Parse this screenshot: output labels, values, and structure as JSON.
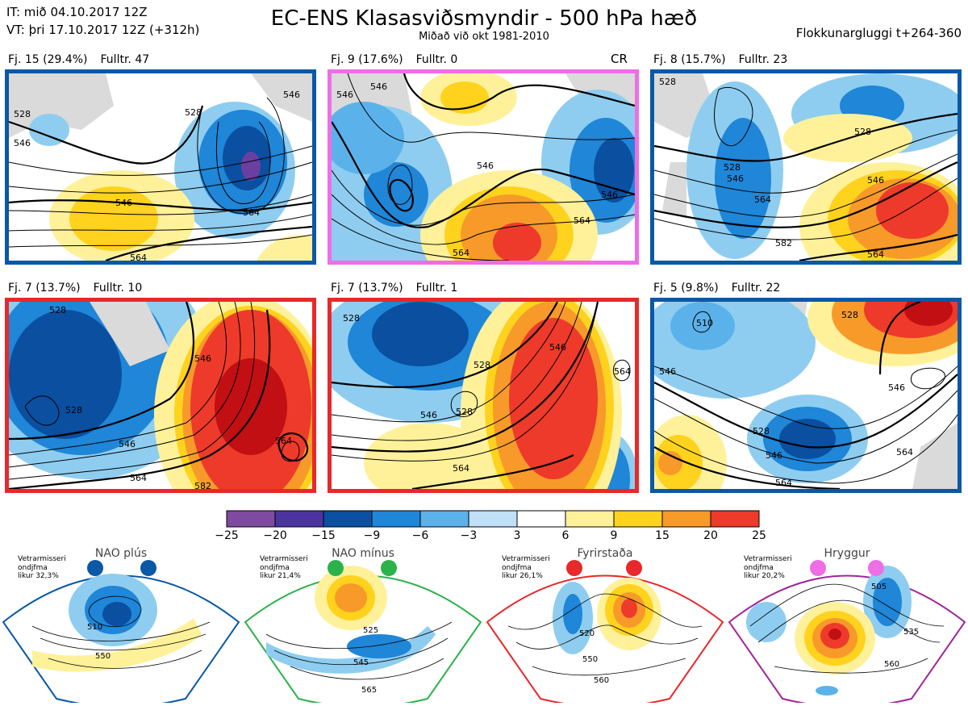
{
  "header": {
    "it_line": "IT: mið 04.10.2017 12Z",
    "vt_line": "VT: þri 17.10.2017 12Z  (+312h)",
    "title": "EC-ENS Klasasviðsmyndir - 500 hPa hæð",
    "subtitle": "Miðað við okt 1981-2010",
    "window": "Flokkunargluggi t+264-360"
  },
  "panels": [
    {
      "fj": "Fj. 15 (29.4%)",
      "fulltr": "Fulltr. 47",
      "border": "#0a58a6",
      "extra": "",
      "contour_labels": [
        "528",
        "546",
        "528",
        "546",
        "546",
        "564",
        "564"
      ]
    },
    {
      "fj": "Fj. 9 (17.6%)",
      "fulltr": "Fulltr. 0",
      "border": "#ee6ee6",
      "extra": "CR",
      "contour_labels": [
        "546",
        "546",
        "546",
        "546",
        "564",
        "564"
      ]
    },
    {
      "fj": "Fj. 8 (15.7%)",
      "fulltr": "Fulltr. 23",
      "border": "#0a58a6",
      "extra": "",
      "contour_labels": [
        "528",
        "528",
        "528",
        "546",
        "546",
        "564",
        "582",
        "564"
      ]
    },
    {
      "fj": "Fj. 7 (13.7%)",
      "fulltr": "Fulltr. 10",
      "border": "#e8282a",
      "extra": "",
      "contour_labels": [
        "528",
        "528",
        "546",
        "546",
        "564",
        "564",
        "582"
      ]
    },
    {
      "fj": "Fj. 7 (13.7%)",
      "fulltr": "Fulltr. 1",
      "border": "#e8282a",
      "extra": "",
      "contour_labels": [
        "528",
        "528",
        "528",
        "546",
        "546",
        "564",
        "564"
      ]
    },
    {
      "fj": "Fj. 5 (9.8%)",
      "fulltr": "Fulltr. 22",
      "border": "#0a58a6",
      "extra": "",
      "contour_labels": [
        "510",
        "528",
        "528",
        "546",
        "546",
        "546",
        "564",
        "564"
      ]
    }
  ],
  "colorbar": {
    "ticks": [
      "−25",
      "−20",
      "−15",
      "−9",
      "−6",
      "−3",
      "3",
      "6",
      "9",
      "15",
      "20",
      "25"
    ],
    "colors": [
      "#7f4ba0",
      "#4b34a0",
      "#0a4fa0",
      "#1f86d8",
      "#5bb2ea",
      "#bfe0f6",
      "#ffffff",
      "#fff19a",
      "#ffd21e",
      "#f79a2a",
      "#ee3a2a",
      "#c20f14"
    ]
  },
  "regimes": [
    {
      "title": "NAO plús",
      "note": [
        "Vetrarmisseri",
        "ondjfma",
        "likur 32,3%"
      ],
      "color": "#0a58a6",
      "contour_labels": [
        "510",
        "550"
      ]
    },
    {
      "title": "NAO mínus",
      "note": [
        "Vetrarmisseri",
        "ondjfma",
        "likur 21,4%"
      ],
      "color": "#2bb24a",
      "contour_labels": [
        "525",
        "545",
        "565"
      ]
    },
    {
      "title": "Fyrirstaða",
      "note": [
        "Vetrarmisseri",
        "ondjfma",
        "likur 26,1%"
      ],
      "color": "#e8282a",
      "contour_labels": [
        "520",
        "550",
        "560"
      ]
    },
    {
      "title": "Hryggur",
      "note": [
        "Vetrarmisseri",
        "ondjfma",
        "likur 20,2%"
      ],
      "color": "#a0269a",
      "contour_labels": [
        "505",
        "535",
        "560"
      ]
    }
  ]
}
